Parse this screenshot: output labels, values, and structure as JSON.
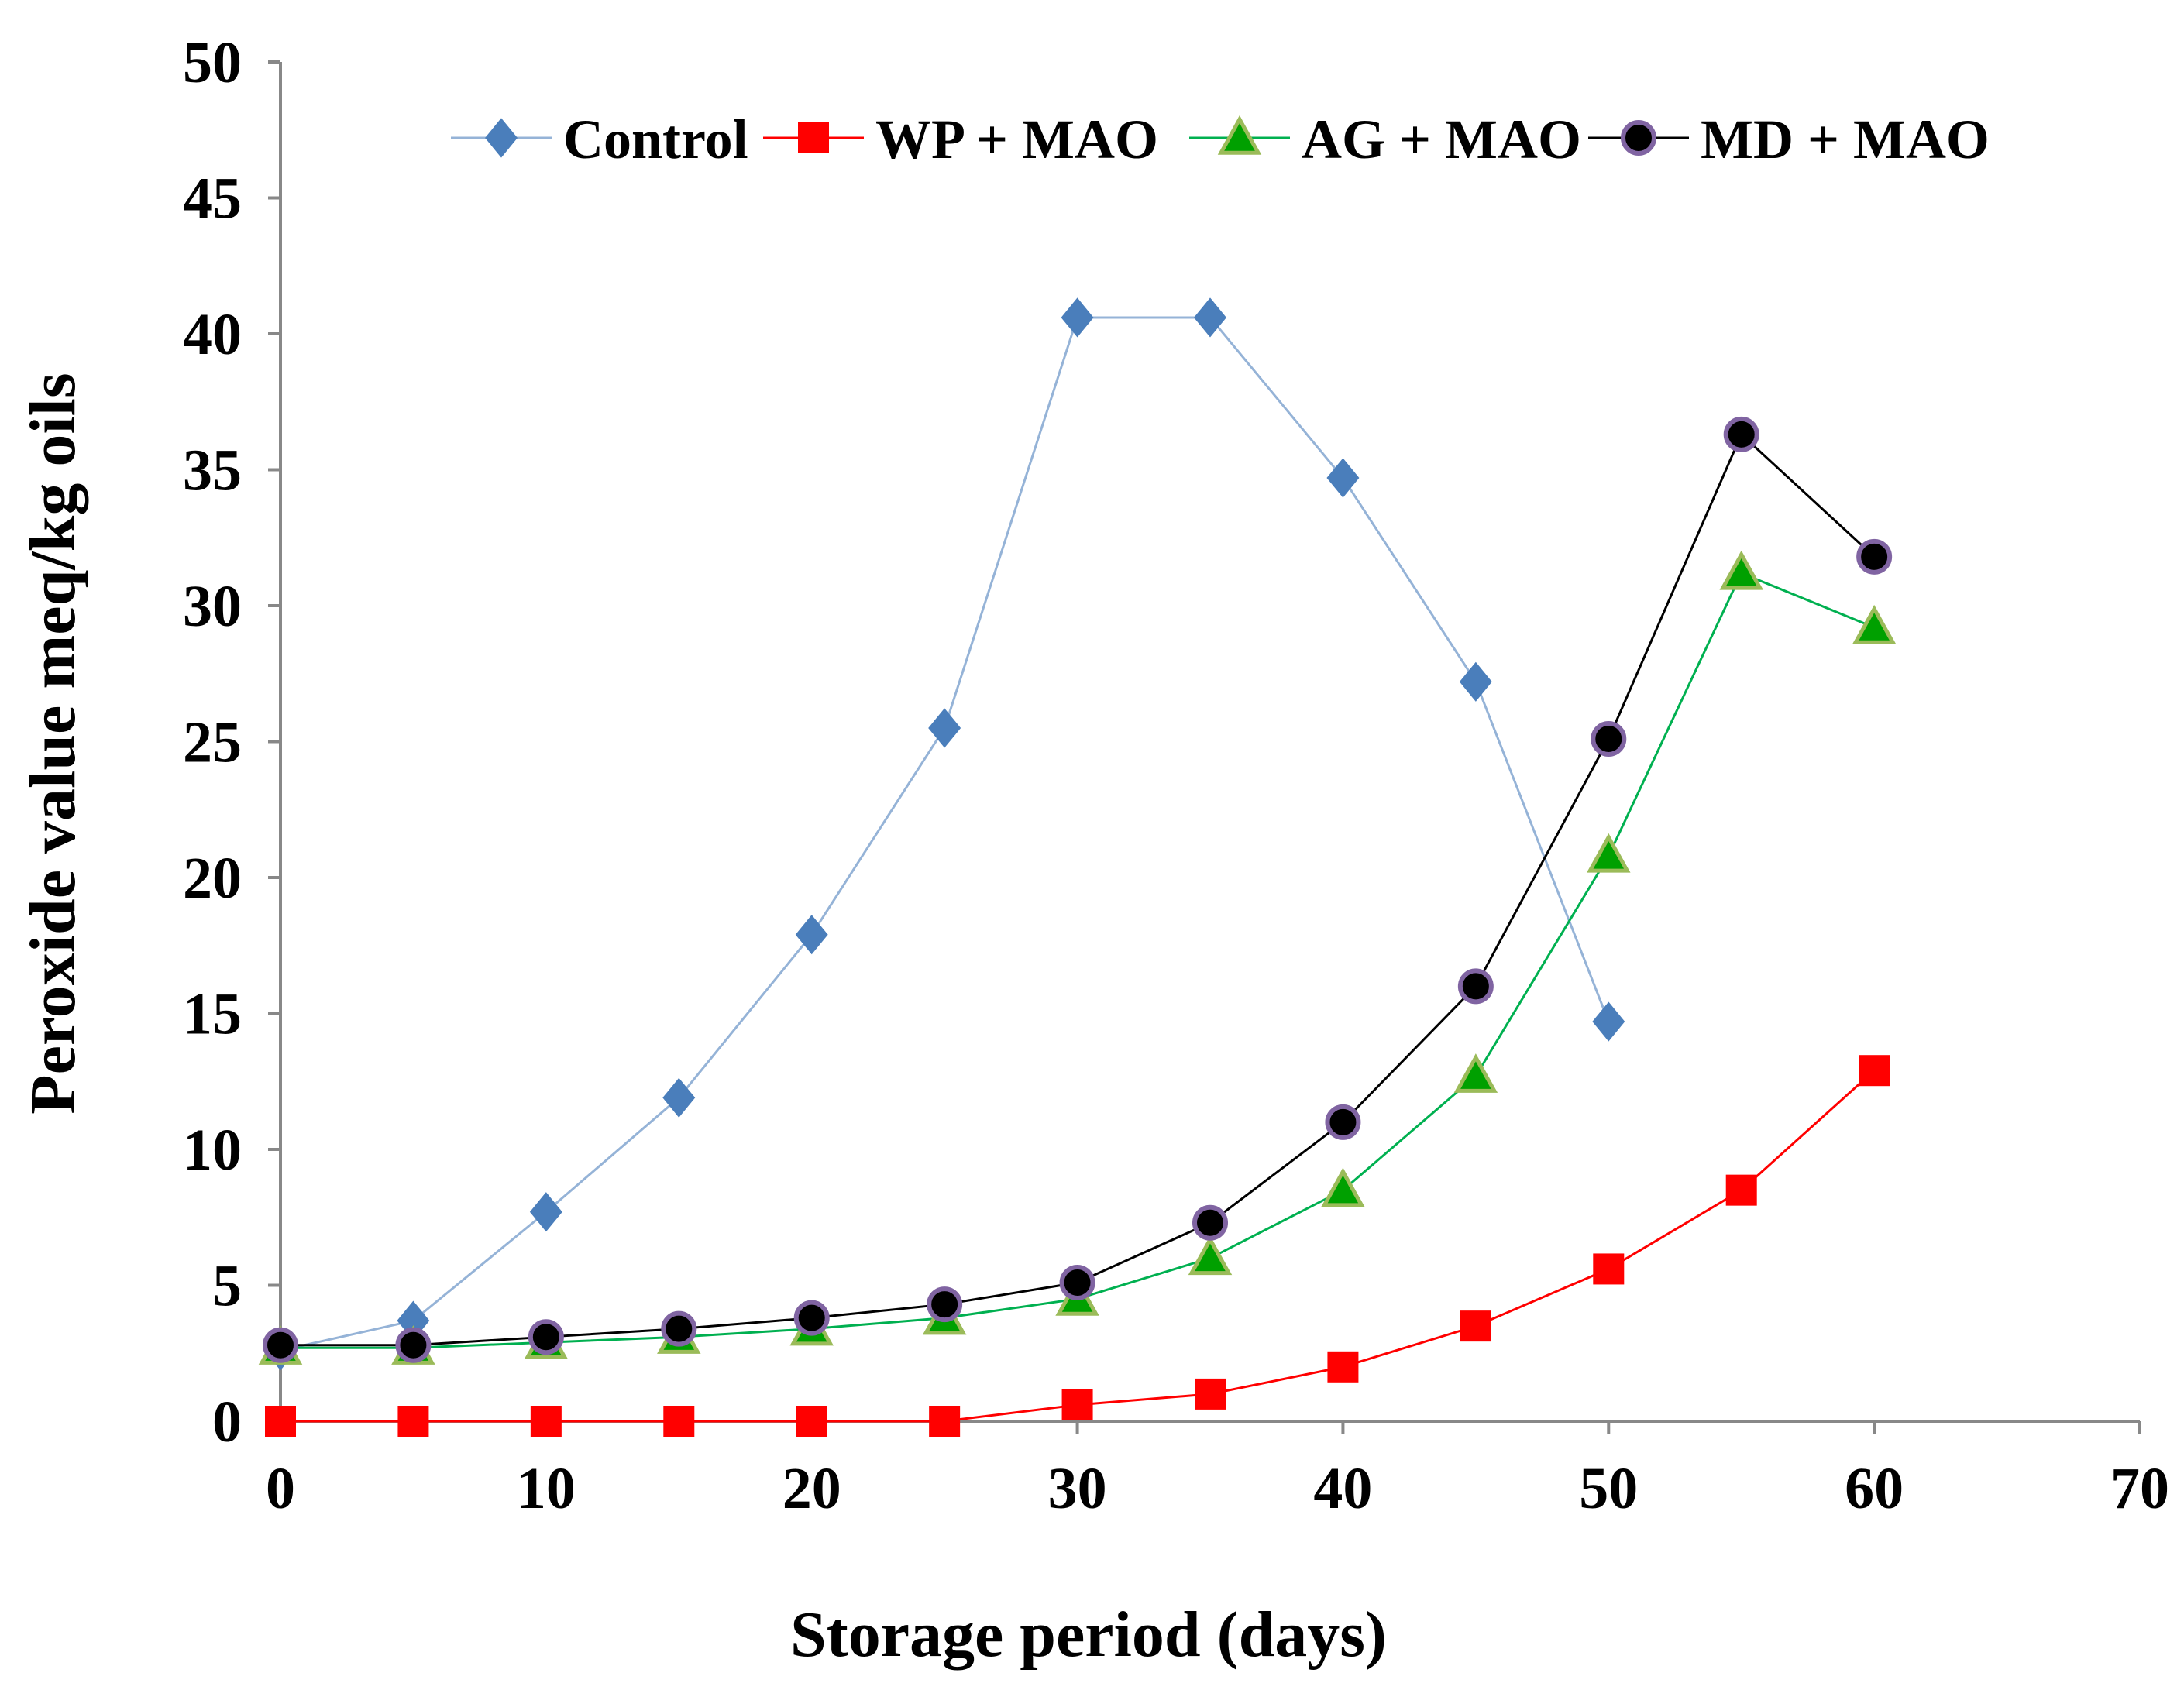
{
  "chart_data": {
    "type": "line",
    "title": "",
    "xlabel": "Storage period (days)",
    "ylabel": "Peroxide value meq/kg oils",
    "xlim": [
      0,
      70
    ],
    "ylim": [
      0,
      50
    ],
    "xticks": [
      0,
      10,
      20,
      30,
      40,
      50,
      60,
      70
    ],
    "yticks": [
      0,
      5,
      10,
      15,
      20,
      25,
      30,
      35,
      40,
      45,
      50
    ],
    "grid": false,
    "legend_position": "top",
    "series": [
      {
        "name": "Control",
        "color": "#4A7EBB",
        "line_color": "#95B3D7",
        "marker": "diamond",
        "x": [
          0,
          5,
          10,
          15,
          20,
          25,
          30,
          35,
          40,
          45,
          50
        ],
        "y": [
          2.6,
          3.7,
          7.7,
          11.9,
          17.9,
          25.5,
          40.6,
          40.6,
          34.7,
          27.2,
          14.7
        ]
      },
      {
        "name": "WP + MAO",
        "color": "#FF0000",
        "line_color": "#FF0000",
        "marker": "square",
        "x": [
          0,
          5,
          10,
          15,
          20,
          25,
          30,
          35,
          40,
          45,
          50,
          55,
          60
        ],
        "y": [
          0,
          0,
          0,
          0,
          0,
          0,
          0.6,
          1.0,
          2.0,
          3.5,
          5.6,
          8.5,
          12.9
        ]
      },
      {
        "name": "AG + MAO",
        "color": "#00A000",
        "line_color": "#00B050",
        "edge_color": "#9BBB59",
        "marker": "triangle",
        "x": [
          0,
          5,
          10,
          15,
          20,
          25,
          30,
          35,
          40,
          45,
          50,
          55,
          60
        ],
        "y": [
          2.7,
          2.7,
          2.9,
          3.1,
          3.4,
          3.8,
          4.5,
          6.0,
          8.5,
          12.7,
          20.8,
          31.2,
          29.2
        ]
      },
      {
        "name": "MD + MAO",
        "color": "#000000",
        "line_color": "#000000",
        "edge_color": "#8064A2",
        "marker": "circle",
        "x": [
          0,
          5,
          10,
          15,
          20,
          25,
          30,
          35,
          40,
          45,
          50,
          55,
          60
        ],
        "y": [
          2.8,
          2.8,
          3.1,
          3.4,
          3.8,
          4.3,
          5.1,
          7.3,
          11.0,
          16.0,
          25.1,
          36.3,
          31.8
        ]
      }
    ]
  }
}
